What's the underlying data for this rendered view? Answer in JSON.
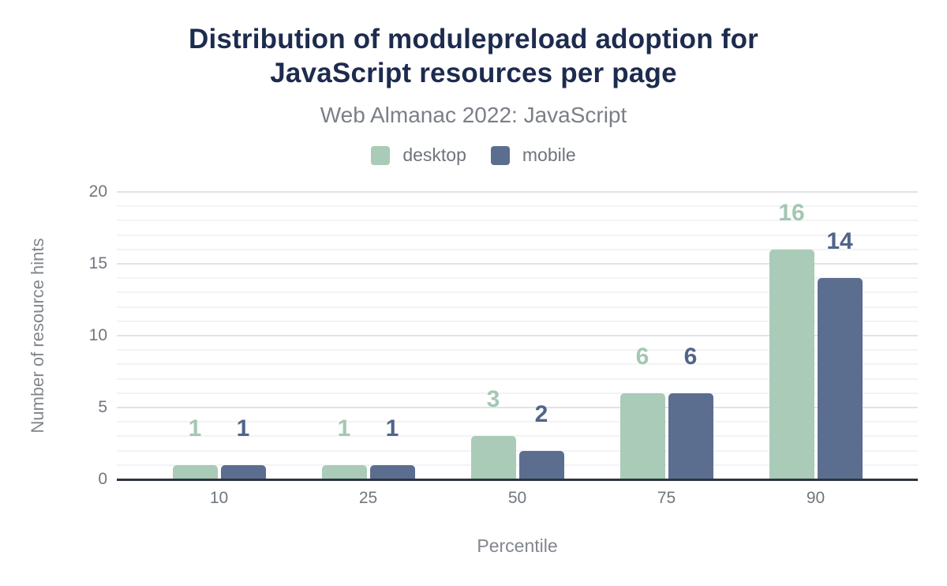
{
  "title": "Distribution of modulepreload adoption for JavaScript resources per page",
  "subtitle": "Web Almanac 2022: JavaScript",
  "chart_data": {
    "type": "bar",
    "title": "Distribution of modulepreload adoption for JavaScript resources per page",
    "subtitle": "Web Almanac 2022: JavaScript",
    "categories": [
      "10",
      "25",
      "50",
      "75",
      "90"
    ],
    "series": [
      {
        "name": "desktop",
        "color": "#a9cbb7",
        "label_color": "#a3c8b1",
        "values": [
          1,
          1,
          3,
          6,
          16
        ]
      },
      {
        "name": "mobile",
        "color": "#5c6e8f",
        "label_color": "#51658a",
        "values": [
          1,
          1,
          2,
          6,
          14
        ]
      }
    ],
    "xlabel": "Percentile",
    "ylabel": "Number of resource hints",
    "ylim": [
      0,
      20
    ],
    "yticks": [
      0,
      5,
      10,
      15,
      20
    ],
    "minor_grid_step": 1,
    "major_grid_step": 5,
    "grid": true,
    "legend_position": "top",
    "data_labels": true
  },
  "colors": {
    "title": "#1d2b4e",
    "subtitle": "#7b7f87",
    "tick_label": "#71767e",
    "axis_title": "#82868d",
    "axis_line": "#2d3340",
    "grid_minor": "#f3f3f6",
    "grid_major": "#e2e3e8",
    "background": "#ffffff"
  }
}
